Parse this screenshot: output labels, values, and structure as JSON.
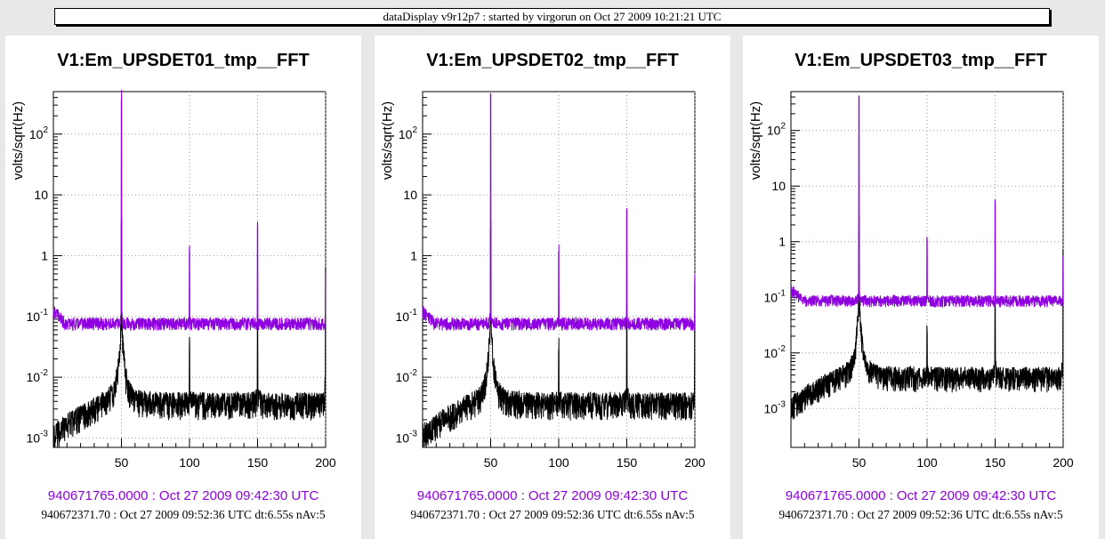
{
  "title_bar": "dataDisplay v9r12p7 : started by virgorun on Oct 27 2009 10:21:21 UTC",
  "colors": {
    "reference": "#8e00e0",
    "current": "#000000",
    "grid": "#999999"
  },
  "chart_data": [
    {
      "type": "line",
      "title": "V1:Em_UPSDET01_tmp__FFT",
      "ylabel": "volts/sqrt(Hz)",
      "xlabel": "",
      "yscale": "log",
      "grid": true,
      "xlim": [
        0,
        200
      ],
      "ylim": [
        0.0007,
        500
      ],
      "x_ticks": [
        50,
        100,
        150,
        200
      ],
      "y_ticks": [
        "10^-3",
        "10^-2",
        "10^-1",
        "1",
        "10",
        "10^2"
      ],
      "series": [
        {
          "name": "940671765.0000 : Oct 27 2009 09:42:30 UTC",
          "color": "#8e00e0",
          "baseline": 0.075,
          "peaks": [
            [
              50,
              430
            ],
            [
              100,
              1.2
            ],
            [
              150,
              3.0
            ],
            [
              200,
              0.5
            ]
          ]
        },
        {
          "name": "940672371.70 : Oct 27 2009 09:52:36 UTC dt:6.55s nAv:5",
          "color": "#000000",
          "baseline": 0.0035,
          "peaks": [
            [
              50,
              3.0
            ],
            [
              100,
              0.03
            ],
            [
              150,
              0.1
            ],
            [
              200,
              0.6
            ]
          ]
        }
      ]
    },
    {
      "type": "line",
      "title": "V1:Em_UPSDET02_tmp__FFT",
      "ylabel": "volts/sqrt(Hz)",
      "xlabel": "",
      "yscale": "log",
      "grid": true,
      "xlim": [
        0,
        200
      ],
      "ylim": [
        0.0007,
        500
      ],
      "x_ticks": [
        50,
        100,
        150,
        200
      ],
      "y_ticks": [
        "10^-3",
        "10^-2",
        "10^-1",
        "1",
        "10",
        "10^2"
      ],
      "series": [
        {
          "name": "940671765.0000 : Oct 27 2009 09:42:30 UTC",
          "color": "#8e00e0",
          "baseline": 0.075,
          "peaks": [
            [
              50,
              400
            ],
            [
              100,
              1.2
            ],
            [
              150,
              5.0
            ],
            [
              200,
              0.5
            ]
          ]
        },
        {
          "name": "940672371.70 : Oct 27 2009 09:52:36 UTC dt:6.55s nAv:5",
          "color": "#000000",
          "baseline": 0.0035,
          "peaks": [
            [
              50,
              3.0
            ],
            [
              100,
              0.03
            ],
            [
              150,
              0.1
            ],
            [
              200,
              0.5
            ]
          ]
        }
      ]
    },
    {
      "type": "line",
      "title": "V1:Em_UPSDET03_tmp__FFT",
      "ylabel": "volts/sqrt(Hz)",
      "xlabel": "",
      "yscale": "log",
      "grid": true,
      "xlim": [
        0,
        200
      ],
      "ylim": [
        0.0002,
        500
      ],
      "x_ticks": [
        50,
        100,
        150,
        200
      ],
      "y_ticks": [
        "10^-3",
        "10^-2",
        "10^-1",
        "1",
        "10",
        "10^2"
      ],
      "series": [
        {
          "name": "940671765.0000 : Oct 27 2009 09:42:30 UTC",
          "color": "#8e00e0",
          "baseline": 0.085,
          "peaks": [
            [
              50,
              400
            ],
            [
              100,
              1.2
            ],
            [
              150,
              5.0
            ],
            [
              200,
              0.5
            ]
          ]
        },
        {
          "name": "940672371.70 : Oct 27 2009 09:52:36 UTC dt:6.55s nAv:5",
          "color": "#000000",
          "baseline": 0.0035,
          "peaks": [
            [
              50,
              3.0
            ],
            [
              100,
              0.03
            ],
            [
              150,
              0.1
            ],
            [
              200,
              0.6
            ]
          ]
        }
      ]
    }
  ]
}
